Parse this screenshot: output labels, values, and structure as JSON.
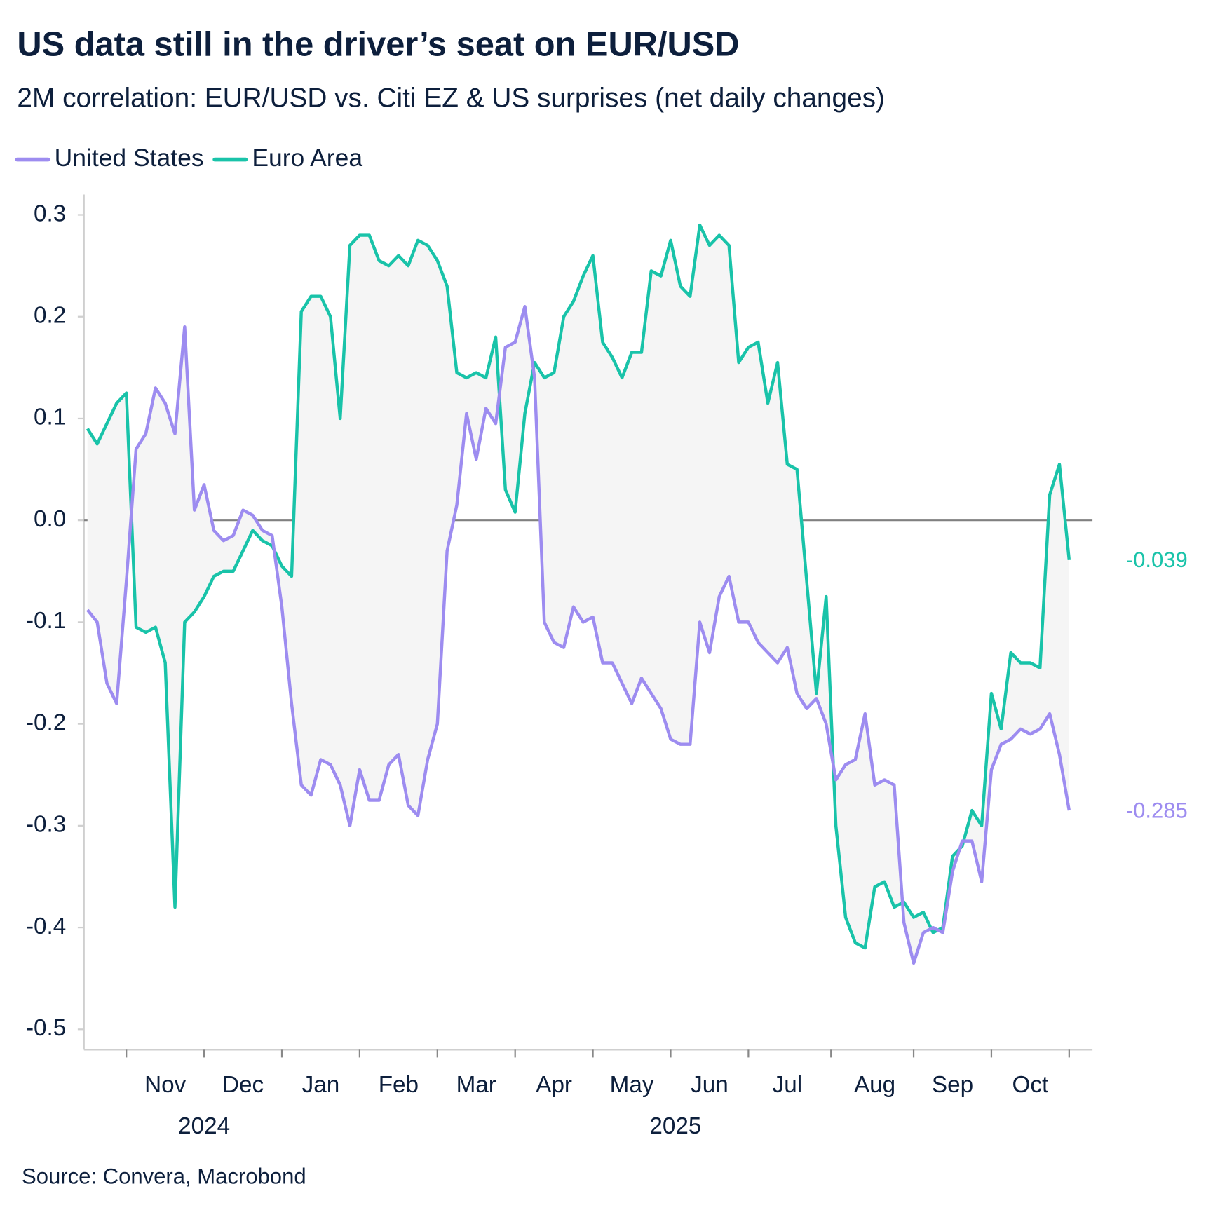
{
  "chart_data": {
    "type": "line",
    "title": "US data still in the driver’s seat on EUR/USD",
    "subtitle": "2M correlation: EUR/USD vs. Citi EZ & US surprises (net daily changes)",
    "source": "Source: Convera, Macrobond",
    "categories": [
      null,
      null,
      null,
      null,
      null,
      null,
      null,
      null,
      "Nov",
      null,
      null,
      null,
      null,
      null,
      null,
      null,
      "Dec",
      null,
      null,
      null,
      null,
      null,
      null,
      null,
      "Jan",
      null,
      null,
      null,
      null,
      null,
      null,
      null,
      "Feb",
      null,
      null,
      null,
      null,
      null,
      null,
      null,
      "Mar",
      null,
      null,
      null,
      null,
      null,
      null,
      null,
      "Apr",
      null,
      null,
      null,
      null,
      null,
      null,
      null,
      "May",
      null,
      null,
      null,
      null,
      null,
      null,
      null,
      "Jun",
      null,
      null,
      null,
      null,
      null,
      null,
      null,
      "Jul",
      null,
      null,
      null,
      null,
      null,
      null,
      null,
      null,
      "Aug",
      null,
      null,
      null,
      null,
      null,
      null,
      null,
      "Sep",
      null,
      null,
      null,
      null,
      null,
      null,
      null,
      "Oct",
      null,
      null,
      null,
      null
    ],
    "x_groups": [
      {
        "label": "2024",
        "from": "Nov",
        "to": "Dec"
      },
      {
        "label": "2025",
        "from": "Jan",
        "to": "Oct"
      }
    ],
    "series": [
      {
        "name": "United States",
        "color": "#9d8cf0",
        "values": [
          -0.088,
          -0.1,
          -0.16,
          -0.18,
          -0.06,
          0.07,
          0.085,
          0.13,
          0.115,
          0.085,
          0.19,
          0.01,
          0.035,
          -0.01,
          -0.02,
          -0.015,
          0.01,
          0.005,
          -0.01,
          -0.015,
          -0.085,
          -0.18,
          -0.26,
          -0.27,
          -0.235,
          -0.24,
          -0.26,
          -0.3,
          -0.245,
          -0.275,
          -0.275,
          -0.24,
          -0.23,
          -0.28,
          -0.29,
          -0.235,
          -0.2,
          -0.03,
          0.015,
          0.105,
          0.06,
          0.11,
          0.095,
          0.17,
          0.175,
          0.21,
          0.14,
          -0.1,
          -0.12,
          -0.125,
          -0.085,
          -0.1,
          -0.095,
          -0.14,
          -0.14,
          -0.16,
          -0.18,
          -0.155,
          -0.17,
          -0.185,
          -0.215,
          -0.22,
          -0.22,
          -0.1,
          -0.13,
          -0.075,
          -0.055,
          -0.1,
          -0.1,
          -0.12,
          -0.13,
          -0.14,
          -0.125,
          -0.17,
          -0.185,
          -0.175,
          -0.2,
          -0.255,
          -0.24,
          -0.235,
          -0.19,
          -0.26,
          -0.255,
          -0.26,
          -0.395,
          -0.435,
          -0.405,
          -0.4,
          -0.405,
          -0.345,
          -0.315,
          -0.315,
          -0.355,
          -0.245,
          -0.22,
          -0.215,
          -0.205,
          -0.21,
          -0.205,
          -0.19,
          -0.23,
          -0.285
        ]
      },
      {
        "name": "Euro Area",
        "color": "#19c3a9",
        "values": [
          0.09,
          0.075,
          0.095,
          0.115,
          0.125,
          -0.105,
          -0.11,
          -0.105,
          -0.14,
          -0.38,
          -0.1,
          -0.09,
          -0.075,
          -0.055,
          -0.05,
          -0.05,
          -0.03,
          -0.01,
          -0.02,
          -0.025,
          -0.045,
          -0.055,
          0.205,
          0.22,
          0.22,
          0.2,
          0.1,
          0.27,
          0.28,
          0.28,
          0.255,
          0.25,
          0.26,
          0.25,
          0.275,
          0.27,
          0.255,
          0.23,
          0.145,
          0.14,
          0.145,
          0.14,
          0.18,
          0.03,
          0.008,
          0.105,
          0.155,
          0.14,
          0.145,
          0.2,
          0.215,
          0.24,
          0.26,
          0.175,
          0.16,
          0.14,
          0.165,
          0.165,
          0.245,
          0.24,
          0.275,
          0.23,
          0.22,
          0.29,
          0.27,
          0.28,
          0.27,
          0.155,
          0.17,
          0.175,
          0.115,
          0.155,
          0.055,
          0.05,
          -0.06,
          -0.17,
          -0.075,
          -0.3,
          -0.39,
          -0.415,
          -0.42,
          -0.36,
          -0.355,
          -0.38,
          -0.375,
          -0.39,
          -0.385,
          -0.405,
          -0.4,
          -0.33,
          -0.32,
          -0.285,
          -0.3,
          -0.17,
          -0.205,
          -0.13,
          -0.14,
          -0.14,
          -0.145,
          0.025,
          0.055,
          -0.039
        ]
      }
    ],
    "ylim": [
      -0.52,
      0.32
    ],
    "yticks": [
      0.3,
      0.2,
      0.1,
      {
        "value": 0,
        "label": "0.0"
      },
      -0.1,
      -0.2,
      -0.3,
      -0.4,
      -0.5
    ],
    "zero_line": true,
    "fill_between": true,
    "fill_color": "#f5f5f5",
    "end_labels": true,
    "legend": "top-left"
  }
}
